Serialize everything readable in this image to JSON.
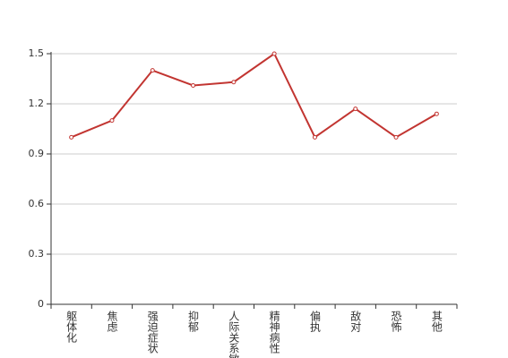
{
  "chart_data": {
    "type": "line",
    "categories": [
      "躯体化",
      "焦虑",
      "强迫症状",
      "抑郁",
      "人际关系敏感",
      "精神病性",
      "偏执",
      "敌对",
      "恐怖",
      "其他"
    ],
    "values": [
      1.0,
      1.1,
      1.4,
      1.31,
      1.33,
      1.5,
      1.0,
      1.17,
      1.0,
      1.14
    ],
    "color": "#c23531",
    "ylim": [
      0,
      1.5
    ],
    "yticks": [
      0,
      0.3,
      0.6,
      0.9,
      1.2,
      1.5
    ],
    "grid": true
  }
}
